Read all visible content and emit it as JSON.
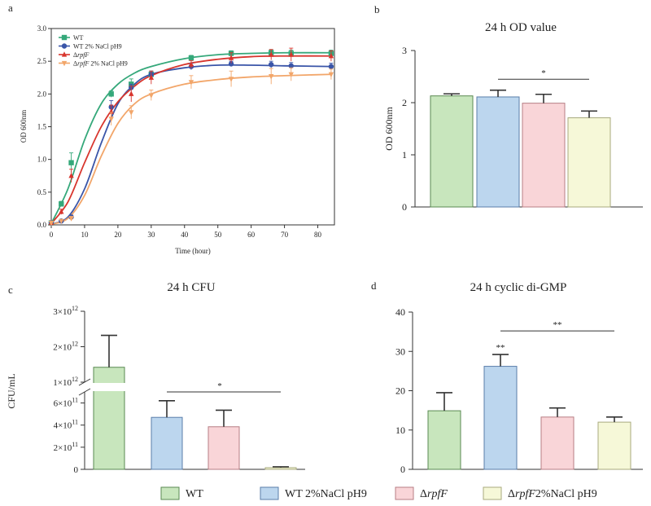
{
  "chart_data": [
    {
      "panel": "a",
      "type": "line",
      "title": "",
      "xlabel": "Time (hour)",
      "ylabel": "OD 600nm",
      "xlim": [
        0,
        85
      ],
      "ylim": [
        0,
        3.0
      ],
      "xticks": [
        0,
        10,
        20,
        30,
        40,
        50,
        60,
        70,
        80
      ],
      "yticks": [
        "0.0",
        "0.5",
        "1.0",
        "1.5",
        "2.0",
        "2.5",
        "3.0"
      ],
      "legend_position": "top-left",
      "series": [
        {
          "name": "WT",
          "name_italic": "",
          "name_suffix": "",
          "color": "#35a87a",
          "marker": "square",
          "x": [
            0,
            3,
            6,
            18,
            24,
            30,
            42,
            54,
            66,
            72,
            84
          ],
          "y": [
            0.03,
            0.32,
            0.95,
            2.0,
            2.15,
            2.3,
            2.55,
            2.62,
            2.63,
            2.62,
            2.62
          ],
          "err": [
            0.02,
            0.04,
            0.15,
            0.05,
            0.08,
            0.05,
            0.04,
            0.04,
            0.04,
            0.05,
            0.05
          ],
          "curve_x": [
            0,
            5,
            10,
            15,
            20,
            25,
            30,
            40,
            50,
            60,
            70,
            84
          ],
          "curve_y": [
            0.02,
            0.55,
            1.3,
            1.85,
            2.15,
            2.32,
            2.42,
            2.54,
            2.6,
            2.62,
            2.63,
            2.63
          ]
        },
        {
          "name": "WT 2% NaCl pH9",
          "name_italic": "",
          "name_suffix": "",
          "color": "#3a55a8",
          "marker": "circle",
          "x": [
            0,
            3,
            6,
            18,
            24,
            30,
            42,
            54,
            66,
            72,
            84
          ],
          "y": [
            0.03,
            0.06,
            0.12,
            1.8,
            2.1,
            2.3,
            2.42,
            2.46,
            2.45,
            2.43,
            2.42
          ],
          "err": [
            0.02,
            0.02,
            0.03,
            0.1,
            0.05,
            0.05,
            0.05,
            0.04,
            0.05,
            0.05,
            0.05
          ],
          "curve_x": [
            0,
            5,
            10,
            15,
            20,
            25,
            30,
            40,
            50,
            60,
            70,
            84
          ],
          "curve_y": [
            0.01,
            0.12,
            0.55,
            1.25,
            1.85,
            2.15,
            2.3,
            2.4,
            2.44,
            2.44,
            2.43,
            2.42
          ]
        },
        {
          "name": "",
          "name_italic": "rpfF",
          "name_suffix": "",
          "color": "#d8352d",
          "marker": "triangle",
          "x": [
            0,
            3,
            6,
            18,
            24,
            30,
            42,
            54,
            66,
            72,
            84
          ],
          "y": [
            0.03,
            0.2,
            0.75,
            1.73,
            2.0,
            2.25,
            2.45,
            2.55,
            2.6,
            2.6,
            2.58
          ],
          "err": [
            0.02,
            0.04,
            0.1,
            0.1,
            0.12,
            0.1,
            0.06,
            0.08,
            0.08,
            0.1,
            0.08
          ],
          "curve_x": [
            0,
            5,
            10,
            15,
            20,
            25,
            30,
            40,
            50,
            60,
            70,
            84
          ],
          "curve_y": [
            0.02,
            0.35,
            0.95,
            1.5,
            1.88,
            2.12,
            2.28,
            2.45,
            2.53,
            2.57,
            2.58,
            2.58
          ]
        },
        {
          "name": "",
          "name_italic": "rpfF",
          "name_suffix": " 2% NaCl pH9",
          "color": "#f2a66a",
          "marker": "triangle-down",
          "x": [
            0,
            3,
            6,
            18,
            24,
            30,
            42,
            54,
            66,
            72,
            84
          ],
          "y": [
            0.03,
            0.06,
            0.1,
            1.62,
            1.72,
            1.98,
            2.18,
            2.23,
            2.27,
            2.3,
            2.3
          ],
          "err": [
            0.02,
            0.02,
            0.03,
            0.1,
            0.1,
            0.08,
            0.1,
            0.12,
            0.12,
            0.1,
            0.08
          ],
          "curve_x": [
            0,
            5,
            10,
            15,
            20,
            25,
            30,
            40,
            50,
            60,
            70,
            84
          ],
          "curve_y": [
            0.01,
            0.1,
            0.45,
            1.05,
            1.55,
            1.85,
            2.0,
            2.15,
            2.22,
            2.26,
            2.28,
            2.3
          ]
        }
      ]
    },
    {
      "panel": "b",
      "type": "bar",
      "title": "24 h OD value",
      "xlabel": "",
      "ylabel": "OD 600nm",
      "ylim": [
        0,
        3
      ],
      "yticks": [
        "0",
        "1",
        "2",
        "3"
      ],
      "values": [
        2.13,
        2.11,
        1.99,
        1.71
      ],
      "errors": [
        0.04,
        0.13,
        0.17,
        0.13
      ],
      "significance": [
        {
          "from": 1,
          "to": 3,
          "y": 2.45,
          "label": "*"
        }
      ]
    },
    {
      "panel": "c",
      "type": "bar",
      "title": "24 h CFU",
      "xlabel": "",
      "ylabel": "CFU/mL",
      "y_axis_break": true,
      "lower_ylim": [
        0,
        700000000000
      ],
      "upper_ylim": [
        1000000000000,
        3000000000000
      ],
      "yticks_lower": [
        {
          "v": 0,
          "label": "0"
        },
        {
          "v": 200000000000,
          "base": "2×10",
          "exp": "11"
        },
        {
          "v": 400000000000,
          "base": "4×10",
          "exp": "11"
        },
        {
          "v": 600000000000,
          "base": "6×10",
          "exp": "11"
        }
      ],
      "yticks_upper": [
        {
          "v": 1000000000000,
          "base": "1×10",
          "exp": "12"
        },
        {
          "v": 2000000000000,
          "base": "2×10",
          "exp": "12"
        },
        {
          "v": 3000000000000,
          "base": "3×10",
          "exp": "12"
        }
      ],
      "values": [
        1420000000000,
        470000000000,
        385000000000,
        15000000000
      ],
      "errors": [
        900000000000,
        150000000000,
        150000000000,
        8000000000
      ],
      "significance": [
        {
          "from": 1,
          "to": 3,
          "level": 0.5,
          "label": "*"
        }
      ]
    },
    {
      "panel": "d",
      "type": "bar",
      "title": "24 h cyclic di-GMP",
      "xlabel": "",
      "ylabel": "",
      "ylim": [
        0,
        40
      ],
      "yticks": [
        "0",
        "10",
        "20",
        "30",
        "40"
      ],
      "values": [
        14.9,
        26.2,
        13.3,
        12.0
      ],
      "errors": [
        4.6,
        3.0,
        2.3,
        1.3
      ],
      "bar_labels": [
        "",
        "**",
        "",
        ""
      ],
      "significance": [
        {
          "from": 1,
          "to": 3,
          "y": 35.2,
          "label": "**"
        }
      ]
    }
  ],
  "panel_letters": [
    "a",
    "b",
    "c",
    "d"
  ],
  "groups": {
    "fills": [
      "#c8e6bd",
      "#bcd6ee",
      "#f9d5d8",
      "#f6f8d8"
    ],
    "strokes": [
      "#5a8a52",
      "#5a7eaa",
      "#b77e84",
      "#a8aa7e"
    ]
  },
  "legend": {
    "items": [
      {
        "delta": "",
        "italic": "",
        "text": "WT"
      },
      {
        "delta": "",
        "italic": "",
        "text": "WT 2%NaCl pH9"
      },
      {
        "delta": "Δ",
        "italic": "rpfF",
        "text": ""
      },
      {
        "delta": "Δ",
        "italic": "rpfF",
        "text": "2%NaCl pH9"
      }
    ]
  },
  "delta_symbol": "Δ"
}
